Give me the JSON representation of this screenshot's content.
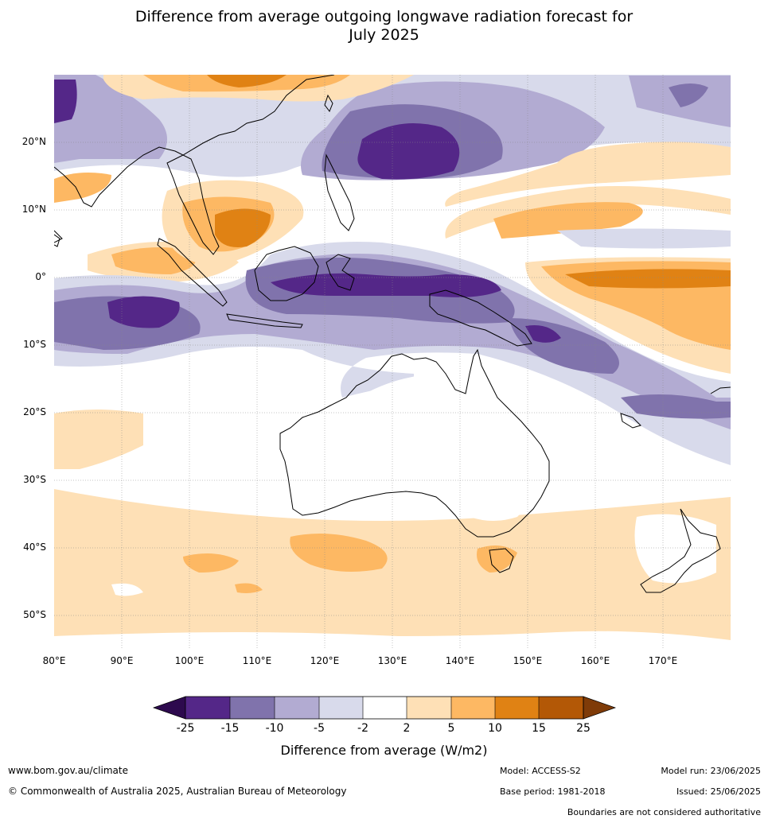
{
  "title_line1": "Difference from average outgoing longwave radiation forecast for",
  "title_line2": "July 2025",
  "map": {
    "lat_labels": [
      "20°N",
      "10°N",
      "0°",
      "10°S",
      "20°S",
      "30°S",
      "40°S",
      "50°S"
    ],
    "lon_labels": [
      "80°E",
      "90°E",
      "100°E",
      "110°E",
      "120°E",
      "130°E",
      "140°E",
      "150°E",
      "160°E",
      "170°E"
    ],
    "extent": {
      "lon_min": 80,
      "lon_max": 180,
      "lat_min": -55,
      "lat_max": 30
    }
  },
  "colorbar": {
    "ticks": [
      "-25",
      "-15",
      "-10",
      "-5",
      "-2",
      "2",
      "5",
      "10",
      "15",
      "25"
    ],
    "colors": {
      "below_min": "#2d0a4e",
      "n25_n15": "#542788",
      "n15_n10": "#8073ac",
      "n10_n5": "#b2abd2",
      "n5_n2": "#d8daeb",
      "n2_p2": "#ffffff",
      "p2_p5": "#fee0b6",
      "p5_p10": "#fdb863",
      "p10_p15": "#e08214",
      "p15_p25": "#b35806",
      "above_max": "#7f3b08"
    },
    "title": "Difference from average (W/m2)"
  },
  "footer": {
    "website": "www.bom.gov.au/climate",
    "copyright": "© Commonwealth of Australia 2025, Australian Bureau of Meteorology",
    "model": "Model: ACCESS-S2",
    "base_period": "Base period: 1981-2018",
    "model_run": "Model run: 23/06/2025",
    "issued": "Issued: 25/06/2025",
    "disclaimer": "Boundaries are not considered authoritative"
  }
}
